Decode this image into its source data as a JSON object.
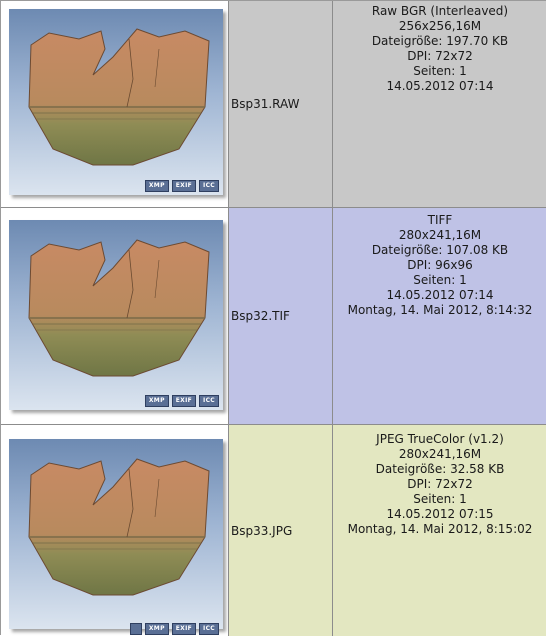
{
  "colors": {
    "raw_bg": "#c8c8c8",
    "tif_bg": "#bfc2e6",
    "jpg_bg": "#e3e7c1"
  },
  "items": [
    {
      "filename": "Bsp31.RAW",
      "badges": [
        "XMP",
        "EXIF",
        "ICC"
      ],
      "info": [
        "Raw BGR (Interleaved)",
        "256x256,16M",
        "Dateigröße: 197.70 KB",
        "DPI: 72x72",
        "Seiten: 1",
        "14.05.2012 07:14"
      ]
    },
    {
      "filename": "Bsp32.TIF",
      "badges": [
        "XMP",
        "EXIF",
        "ICC"
      ],
      "info": [
        "TIFF",
        "280x241,16M",
        "Dateigröße: 107.08 KB",
        "DPI: 96x96",
        "Seiten: 1",
        "14.05.2012 07:14",
        "Montag, 14. Mai 2012, 8:14:32"
      ]
    },
    {
      "filename": "Bsp33.JPG",
      "badges": [
        "XMP",
        "EXIF",
        "ICC"
      ],
      "info": [
        "JPEG TrueColor (v1.2)",
        "280x241,16M",
        "Dateigröße: 32.58 KB",
        "DPI: 72x72",
        "Seiten: 1",
        "14.05.2012 07:15",
        "Montag, 14. Mai 2012, 8:15:02"
      ]
    }
  ]
}
